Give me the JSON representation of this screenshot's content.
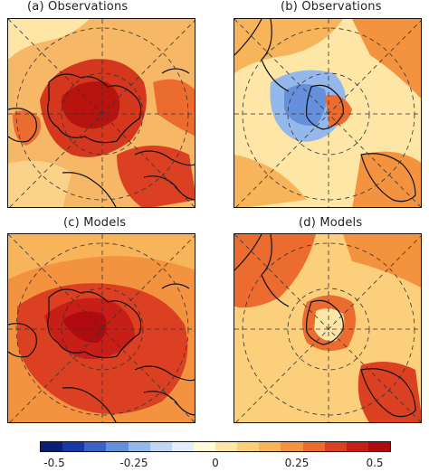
{
  "panels": [
    {
      "title": "(a) Observations",
      "hemisphere": "north"
    },
    {
      "title": "(b) Observations",
      "hemisphere": "south"
    },
    {
      "title": "(c) Models",
      "hemisphere": "north"
    },
    {
      "title": "(d) Models",
      "hemisphere": "south"
    }
  ],
  "colorbar": {
    "ticks": [
      "-0.5",
      "-0.25",
      "0",
      "0.25",
      "0.5"
    ],
    "range": [
      -0.5,
      0.5
    ],
    "colors": [
      "#0a1e78",
      "#1838a8",
      "#3a62c8",
      "#6690dc",
      "#94b8ec",
      "#c0d6f4",
      "#e4eefa",
      "#fffbd8",
      "#fde6a6",
      "#fbcf7c",
      "#f8b45a",
      "#f39340",
      "#ec6c30",
      "#dc4022",
      "#c81e18",
      "#b00c10"
    ]
  }
}
